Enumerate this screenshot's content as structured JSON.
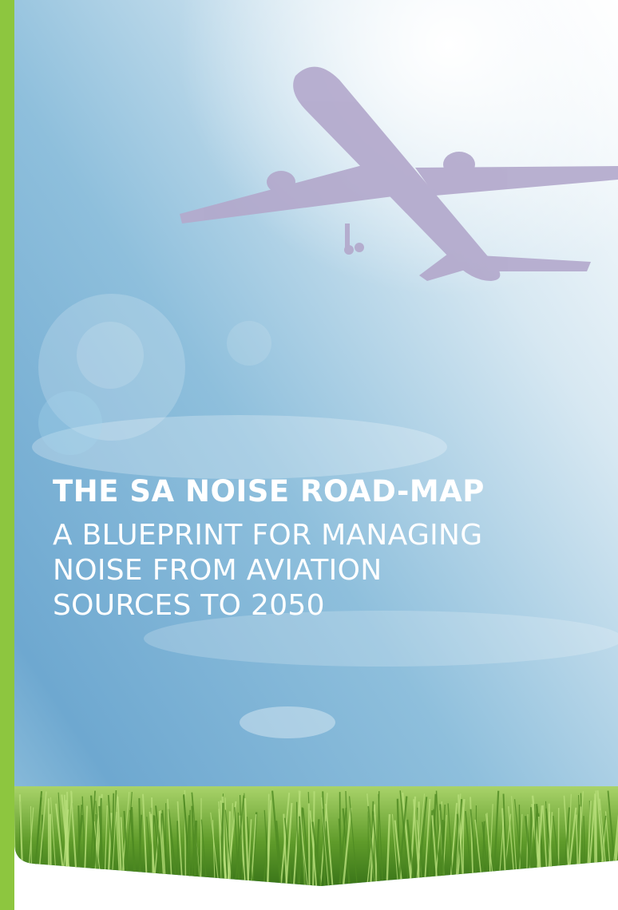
{
  "cover": {
    "title": "THE SA NOISE ROAD-MAP",
    "subtitle_lines": [
      "A BLUEPRINT FOR MANAGING",
      "NOISE FROM AVIATION",
      "SOURCES TO 2050"
    ]
  }
}
